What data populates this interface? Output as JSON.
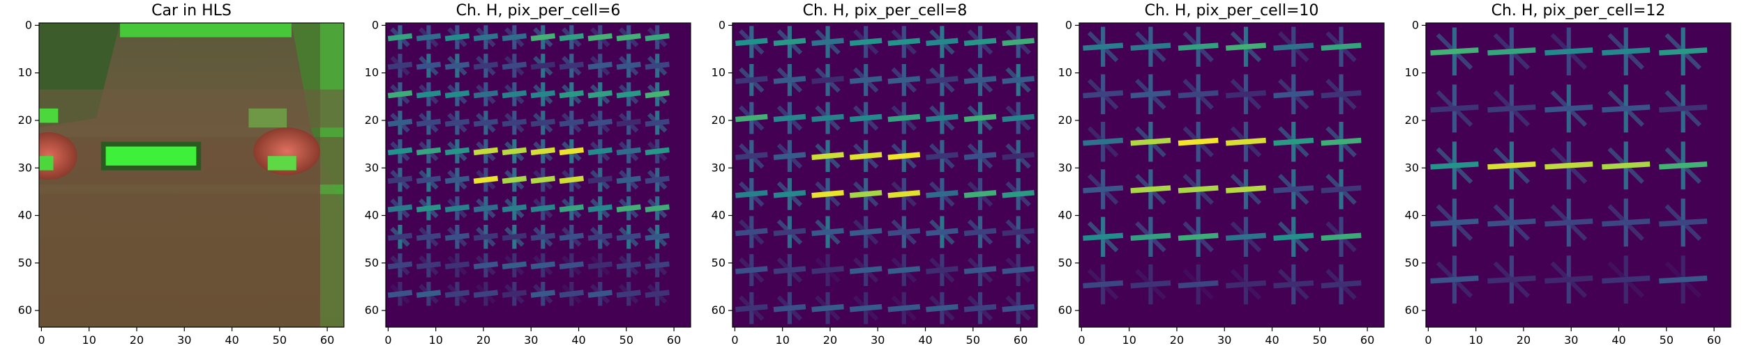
{
  "figure": {
    "panels": [
      {
        "title": "Car in HLS",
        "kind": "image"
      },
      {
        "title": "Ch. H, pix_per_cell=6",
        "kind": "hog",
        "cell": 6
      },
      {
        "title": "Ch. H, pix_per_cell=8",
        "kind": "hog",
        "cell": 8
      },
      {
        "title": "Ch. H, pix_per_cell=10",
        "kind": "hog",
        "cell": 10
      },
      {
        "title": "Ch. H, pix_per_cell=12",
        "kind": "hog",
        "cell": 12
      }
    ],
    "x_ticks": [
      "0",
      "10",
      "20",
      "30",
      "40",
      "50",
      "60"
    ],
    "y_ticks": [
      "0",
      "10",
      "20",
      "30",
      "40",
      "50",
      "60"
    ],
    "image_extent": [
      0,
      64
    ],
    "colors": {
      "hls_background": "#6b5a3a",
      "hls_green": "#3ef03a",
      "hls_red": "#c8483a",
      "viridis_low": "#440154",
      "viridis_mid": "#21918c",
      "viridis_high": "#fde725"
    }
  }
}
